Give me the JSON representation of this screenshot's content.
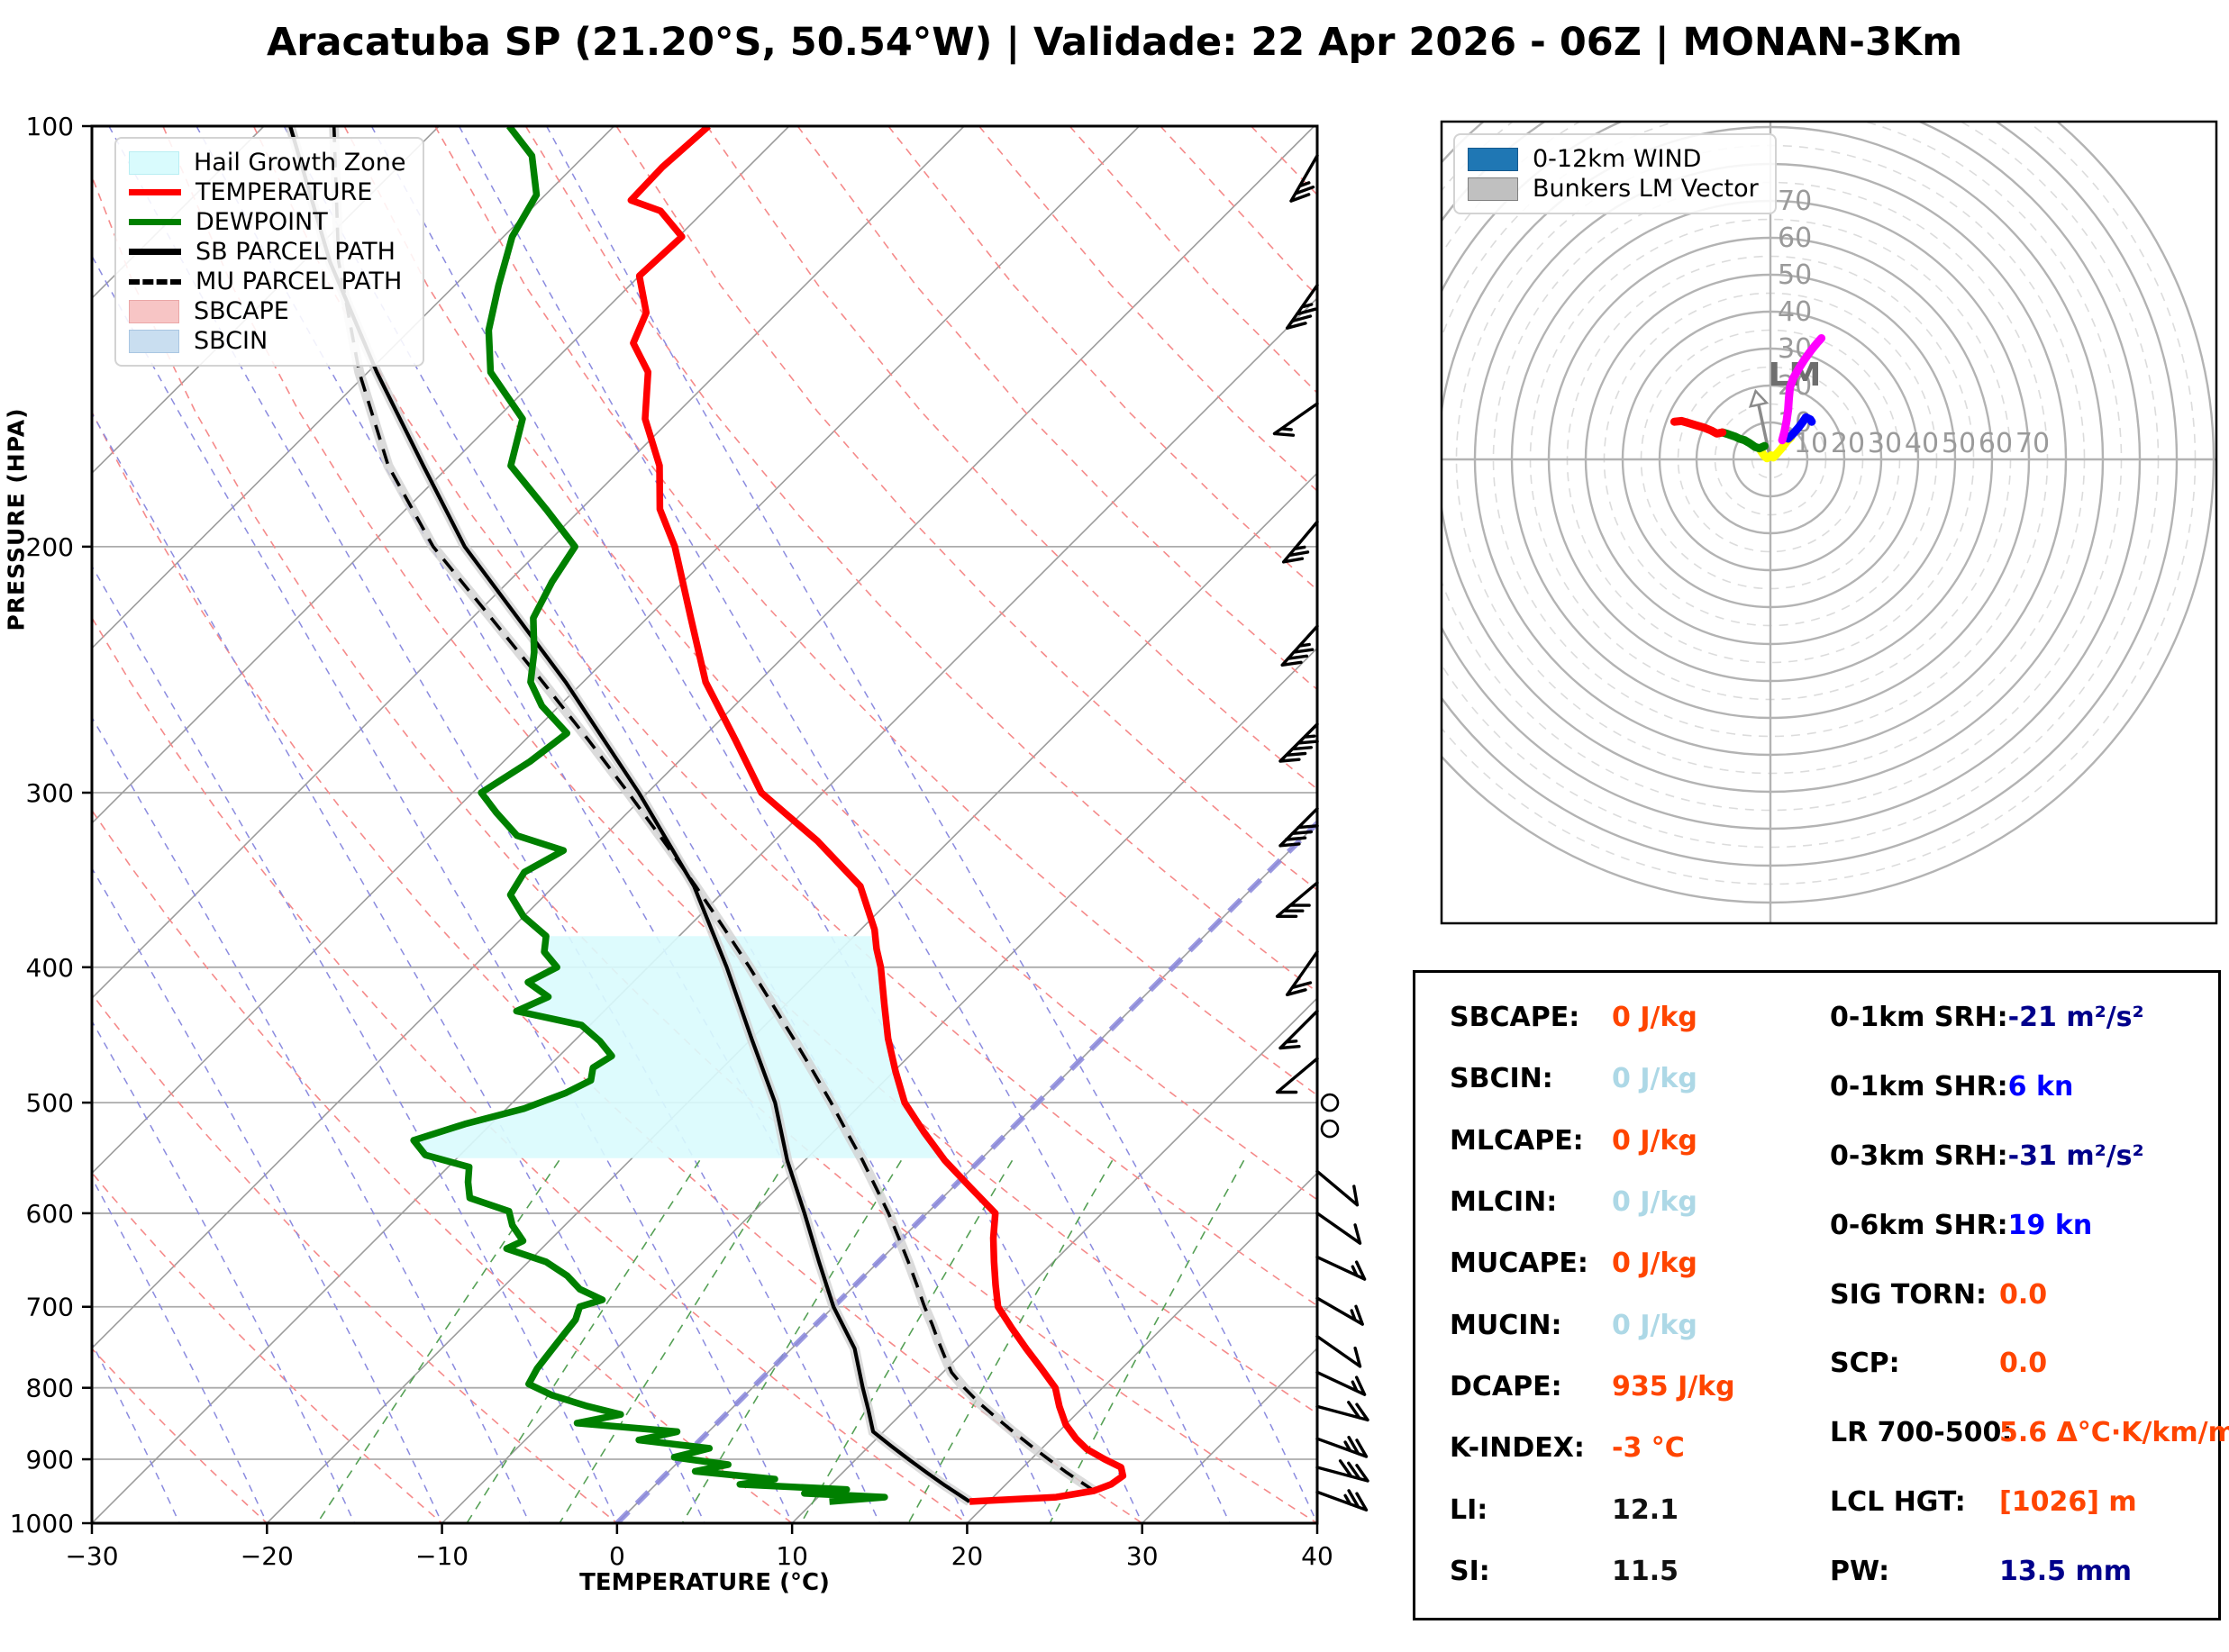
{
  "title": "Aracatuba SP (21.20°S, 50.54°W) | Validade: 22 Apr 2026 - 06Z | MONAN-3Km",
  "skewt": {
    "xlabel": "TEMPERATURE (°C)",
    "ylabel": "PRESSURE (HPA)",
    "legend": [
      {
        "label": "Hail Growth Zone",
        "swatch": "patch",
        "color": "#d9fbfd",
        "border": "#b9eef3"
      },
      {
        "label": "TEMPERATURE",
        "swatch": "line",
        "color": "#ff0000"
      },
      {
        "label": "DEWPOINT",
        "swatch": "line",
        "color": "#008000"
      },
      {
        "label": "SB PARCEL PATH",
        "swatch": "line",
        "color": "#000000"
      },
      {
        "label": "MU PARCEL PATH",
        "swatch": "dash",
        "color": "#000000"
      },
      {
        "label": "SBCAPE",
        "swatch": "patch",
        "color": "#f7c5c5",
        "border": "#eaa7a7"
      },
      {
        "label": "SBCIN",
        "swatch": "patch",
        "color": "#c9def0",
        "border": "#a9c6e2"
      }
    ]
  },
  "hodograph": {
    "legend": [
      {
        "label": "0-12km WIND",
        "color": "#1f77b4",
        "border": "#15598e"
      },
      {
        "label": "Bunkers LM Vector",
        "color": "#c0c0c0",
        "border": "#808080"
      }
    ],
    "lm_label": "LM"
  },
  "table": {
    "left": [
      {
        "label": "SBCAPE:",
        "value": "0 J/kg",
        "color": "#ff4500"
      },
      {
        "label": "SBCIN:",
        "value": "0 J/kg",
        "color": "#add8e6"
      },
      {
        "label": "MLCAPE:",
        "value": "0 J/kg",
        "color": "#ff4500"
      },
      {
        "label": "MLCIN:",
        "value": "0 J/kg",
        "color": "#add8e6"
      },
      {
        "label": "MUCAPE:",
        "value": "0 J/kg",
        "color": "#ff4500"
      },
      {
        "label": "MUCIN:",
        "value": "0 J/kg",
        "color": "#add8e6"
      },
      {
        "label": "DCAPE:",
        "value": "935 J/kg",
        "color": "#ff4500"
      },
      {
        "label": "K-INDEX:",
        "value": "-3 °C",
        "color": "#ff4500"
      },
      {
        "label": "LI:",
        "value": "12.1",
        "color": "#111111"
      },
      {
        "label": "SI:",
        "value": "11.5",
        "color": "#111111"
      }
    ],
    "right": [
      {
        "label": "0-1km SRH:",
        "value": "-21 m²/s²",
        "color": "#00008b"
      },
      {
        "label": "0-1km SHR:",
        "value": "6 kn",
        "color": "#0000ff"
      },
      {
        "label": "0-3km SRH:",
        "value": "-31 m²/s²",
        "color": "#00008b"
      },
      {
        "label": "0-6km SHR:",
        "value": "19 kn",
        "color": "#0000ff"
      },
      {
        "label": "SIG TORN:",
        "value": "0.0",
        "color": "#ff4500"
      },
      {
        "label": "SCP:",
        "value": "0.0",
        "color": "#ff4500"
      },
      {
        "label": "LR 700-500:",
        "value": "5.6 Δ°C·K/km/m",
        "color": "#ff4500"
      },
      {
        "label": "LCL HGT:",
        "value": "[1026] m",
        "color": "#ff4500"
      },
      {
        "label": "PW:",
        "value": "13.5 mm",
        "color": "#00008b"
      }
    ]
  },
  "chart_data": {
    "type": "skewt-sounding",
    "skewt": {
      "pressure_range": [
        100,
        1000
      ],
      "temp_range": [
        -30,
        40
      ],
      "pressure_ticks": [
        100,
        200,
        300,
        400,
        500,
        600,
        700,
        800,
        900,
        1000
      ],
      "temp_ticks": [
        -30,
        -20,
        -10,
        0,
        10,
        20,
        30,
        40
      ],
      "hail_growth_zone_hpa": [
        380,
        548
      ],
      "freezing_isotherm_c": 0,
      "temperature_profile": [
        [
          965,
          18.9
        ],
        [
          958,
          23.6
        ],
        [
          948,
          25.4
        ],
        [
          938,
          26.0
        ],
        [
          925,
          26.2
        ],
        [
          912,
          25.6
        ],
        [
          900,
          24.2
        ],
        [
          885,
          22.6
        ],
        [
          870,
          21.4
        ],
        [
          850,
          20.0
        ],
        [
          825,
          18.6
        ],
        [
          800,
          17.3
        ],
        [
          775,
          15.4
        ],
        [
          750,
          13.4
        ],
        [
          725,
          11.4
        ],
        [
          700,
          9.4
        ],
        [
          675,
          8.0
        ],
        [
          650,
          6.6
        ],
        [
          625,
          5.2
        ],
        [
          600,
          3.9
        ],
        [
          575,
          1.0
        ],
        [
          550,
          -2.0
        ],
        [
          525,
          -4.8
        ],
        [
          500,
          -7.6
        ],
        [
          475,
          -9.9
        ],
        [
          450,
          -12.2
        ],
        [
          425,
          -14.4
        ],
        [
          400,
          -16.7
        ],
        [
          388,
          -18.0
        ],
        [
          376,
          -19.2
        ],
        [
          350,
          -22.5
        ],
        [
          325,
          -27.5
        ],
        [
          300,
          -33.5
        ],
        [
          275,
          -38.0
        ],
        [
          250,
          -43.0
        ],
        [
          225,
          -47.5
        ],
        [
          200,
          -52.5
        ],
        [
          188,
          -55.5
        ],
        [
          175,
          -58.0
        ],
        [
          162,
          -61.5
        ],
        [
          150,
          -64.0
        ],
        [
          143,
          -66.5
        ],
        [
          136,
          -67.5
        ],
        [
          128,
          -70.0
        ],
        [
          120,
          -69.8
        ],
        [
          115,
          -72.5
        ],
        [
          113,
          -74.8
        ],
        [
          107,
          -74.9
        ],
        [
          100,
          -74.6
        ]
      ],
      "dewpoint_profile": [
        [
          965,
          10.9
        ],
        [
          958,
          13.8
        ],
        [
          952,
          9.0
        ],
        [
          946,
          11.2
        ],
        [
          938,
          4.8
        ],
        [
          930,
          6.5
        ],
        [
          918,
          1.5
        ],
        [
          908,
          3.0
        ],
        [
          897,
          -0.5
        ],
        [
          884,
          1.0
        ],
        [
          872,
          -3.5
        ],
        [
          860,
          -1.8
        ],
        [
          848,
          -8.0
        ],
        [
          836,
          -6.0
        ],
        [
          824,
          -8.5
        ],
        [
          810,
          -11.0
        ],
        [
          795,
          -13.0
        ],
        [
          775,
          -13.4
        ],
        [
          755,
          -13.6
        ],
        [
          735,
          -13.8
        ],
        [
          715,
          -14.0
        ],
        [
          700,
          -14.5
        ],
        [
          692,
          -13.6
        ],
        [
          680,
          -15.5
        ],
        [
          665,
          -17.0
        ],
        [
          650,
          -19.0
        ],
        [
          636,
          -22.0
        ],
        [
          628,
          -21.5
        ],
        [
          612,
          -23.0
        ],
        [
          598,
          -24.0
        ],
        [
          585,
          -27.0
        ],
        [
          570,
          -28.0
        ],
        [
          556,
          -28.8
        ],
        [
          545,
          -32.0
        ],
        [
          532,
          -33.5
        ],
        [
          518,
          -31.5
        ],
        [
          505,
          -29.0
        ],
        [
          492,
          -27.5
        ],
        [
          482,
          -26.8
        ],
        [
          472,
          -27.4
        ],
        [
          463,
          -27.0
        ],
        [
          452,
          -28.5
        ],
        [
          440,
          -30.5
        ],
        [
          430,
          -35.0
        ],
        [
          420,
          -34.0
        ],
        [
          410,
          -36.0
        ],
        [
          400,
          -35.2
        ],
        [
          390,
          -36.8
        ],
        [
          380,
          -37.6
        ],
        [
          368,
          -40.0
        ],
        [
          355,
          -42.0
        ],
        [
          342,
          -42.5
        ],
        [
          330,
          -41.5
        ],
        [
          322,
          -45.0
        ],
        [
          310,
          -47.5
        ],
        [
          300,
          -49.5
        ],
        [
          285,
          -48.5
        ],
        [
          272,
          -48.0
        ],
        [
          260,
          -51.0
        ],
        [
          250,
          -53.0
        ],
        [
          238,
          -54.5
        ],
        [
          225,
          -56.5
        ],
        [
          212,
          -57.5
        ],
        [
          200,
          -58.2
        ],
        [
          188,
          -62.0
        ],
        [
          175,
          -66.5
        ],
        [
          162,
          -68.5
        ],
        [
          150,
          -73.0
        ],
        [
          140,
          -75.5
        ],
        [
          130,
          -77.5
        ],
        [
          120,
          -79.5
        ],
        [
          112,
          -80.5
        ],
        [
          105,
          -83.0
        ],
        [
          100,
          -86.0
        ]
      ],
      "sb_parcel": [
        [
          965,
          18.9
        ],
        [
          940,
          16.6
        ],
        [
          920,
          14.8
        ],
        [
          900,
          13.0
        ],
        [
          880,
          11.2
        ],
        [
          860,
          9.4
        ],
        [
          830,
          7.9
        ],
        [
          800,
          6.3
        ],
        [
          750,
          3.6
        ],
        [
          700,
          0.0
        ],
        [
          650,
          -3.4
        ],
        [
          600,
          -7.0
        ],
        [
          550,
          -11.0
        ],
        [
          500,
          -15.0
        ],
        [
          450,
          -20.0
        ],
        [
          400,
          -25.5
        ],
        [
          350,
          -32.0
        ],
        [
          300,
          -40.5
        ],
        [
          250,
          -51.0
        ],
        [
          200,
          -64.5
        ],
        [
          175,
          -71.5
        ],
        [
          150,
          -79.5
        ],
        [
          125,
          -88.5
        ],
        [
          100,
          -98.5
        ]
      ],
      "mu_parcel": [
        [
          948,
          25.4
        ],
        [
          920,
          22.8
        ],
        [
          900,
          21.0
        ],
        [
          880,
          19.2
        ],
        [
          860,
          17.4
        ],
        [
          840,
          15.6
        ],
        [
          820,
          13.8
        ],
        [
          800,
          12.1
        ],
        [
          780,
          10.5
        ],
        [
          760,
          9.2
        ],
        [
          740,
          7.9
        ],
        [
          720,
          6.6
        ],
        [
          700,
          5.2
        ],
        [
          675,
          3.5
        ],
        [
          650,
          1.7
        ],
        [
          625,
          -0.2
        ],
        [
          600,
          -2.2
        ],
        [
          575,
          -4.4
        ],
        [
          550,
          -6.7
        ],
        [
          525,
          -9.2
        ],
        [
          500,
          -11.8
        ],
        [
          475,
          -14.6
        ],
        [
          450,
          -17.6
        ],
        [
          425,
          -20.8
        ],
        [
          400,
          -24.2
        ],
        [
          375,
          -27.9
        ],
        [
          350,
          -31.9
        ],
        [
          325,
          -36.3
        ],
        [
          300,
          -41.1
        ],
        [
          275,
          -46.4
        ],
        [
          250,
          -52.3
        ],
        [
          225,
          -58.9
        ],
        [
          200,
          -66.3
        ],
        [
          175,
          -73.5
        ],
        [
          150,
          -80.5
        ],
        [
          125,
          -88.0
        ],
        [
          100,
          -96.0
        ]
      ],
      "wind_barbs": [
        {
          "p": 105,
          "dir": 210,
          "kt": 25
        },
        {
          "p": 130,
          "dir": 215,
          "kt": 35
        },
        {
          "p": 158,
          "dir": 235,
          "kt": 15
        },
        {
          "p": 192,
          "dir": 220,
          "kt": 25
        },
        {
          "p": 228,
          "dir": 222,
          "kt": 35
        },
        {
          "p": 268,
          "dir": 225,
          "kt": 45
        },
        {
          "p": 308,
          "dir": 225,
          "kt": 40
        },
        {
          "p": 348,
          "dir": 230,
          "kt": 30
        },
        {
          "p": 390,
          "dir": 215,
          "kt": 20
        },
        {
          "p": 430,
          "dir": 225,
          "kt": 15
        },
        {
          "p": 465,
          "dir": 230,
          "kt": 10
        },
        {
          "p": 500,
          "dir": 0,
          "kt": 0
        },
        {
          "p": 522,
          "dir": 0,
          "kt": 0
        },
        {
          "p": 560,
          "dir": 130,
          "kt": 10
        },
        {
          "p": 600,
          "dir": 125,
          "kt": 10
        },
        {
          "p": 645,
          "dir": 115,
          "kt": 15
        },
        {
          "p": 690,
          "dir": 120,
          "kt": 15
        },
        {
          "p": 735,
          "dir": 125,
          "kt": 10
        },
        {
          "p": 780,
          "dir": 115,
          "kt": 15
        },
        {
          "p": 825,
          "dir": 105,
          "kt": 20
        },
        {
          "p": 870,
          "dir": 110,
          "kt": 25
        },
        {
          "p": 912,
          "dir": 105,
          "kt": 30
        },
        {
          "p": 950,
          "dir": 110,
          "kt": 25
        }
      ]
    },
    "hodograph": {
      "ring_step_kt": 10,
      "ring_labels": [
        10,
        20,
        30,
        40,
        50,
        60,
        70
      ],
      "segments": [
        {
          "color": "#ffff00",
          "points": [
            [
              -2.6,
              2.4
            ],
            [
              -1.6,
              0.9
            ],
            [
              -0.9,
              0.3
            ],
            [
              0.2,
              1.1
            ],
            [
              0.8,
              0.5
            ],
            [
              2.0,
              1.8
            ],
            [
              3.2,
              3.2
            ],
            [
              4.4,
              4.8
            ],
            [
              5.6,
              6.0
            ]
          ]
        },
        {
          "color": "#008000",
          "points": [
            [
              -1.6,
              3.6
            ],
            [
              -3.0,
              3.0
            ],
            [
              -4.2,
              3.4
            ],
            [
              -5.6,
              4.4
            ],
            [
              -7.0,
              5.2
            ],
            [
              -8.4,
              5.6
            ],
            [
              -9.6,
              6.2
            ],
            [
              -11.4,
              6.8
            ],
            [
              -13.0,
              7.3
            ]
          ]
        },
        {
          "color": "#ff0000",
          "points": [
            [
              -13.0,
              7.3
            ],
            [
              -14.5,
              7.0
            ],
            [
              -16.0,
              7.8
            ],
            [
              -18.0,
              8.6
            ],
            [
              -20.0,
              9.2
            ],
            [
              -22.0,
              9.8
            ],
            [
              -24.0,
              10.4
            ],
            [
              -26.0,
              10.2
            ]
          ]
        },
        {
          "color": "#0000ff",
          "points": [
            [
              4.8,
              5.6
            ],
            [
              6.2,
              7.0
            ],
            [
              7.6,
              8.6
            ],
            [
              8.8,
              10.2
            ],
            [
              9.6,
              11.4
            ],
            [
              10.8,
              10.8
            ],
            [
              11.2,
              10.2
            ]
          ]
        },
        {
          "color": "#ff00ff",
          "points": [
            [
              3.2,
              5.2
            ],
            [
              3.8,
              7.5
            ],
            [
              4.4,
              10.5
            ],
            [
              4.8,
              13.5
            ],
            [
              5.0,
              16.5
            ],
            [
              5.3,
              19.5
            ],
            [
              6.2,
              22.0
            ],
            [
              7.6,
              24.5
            ],
            [
              9.2,
              27.0
            ],
            [
              11.0,
              29.5
            ],
            [
              12.6,
              31.5
            ],
            [
              13.8,
              32.8
            ]
          ]
        }
      ],
      "lm_vector": [
        -4.0,
        18.5
      ]
    }
  }
}
